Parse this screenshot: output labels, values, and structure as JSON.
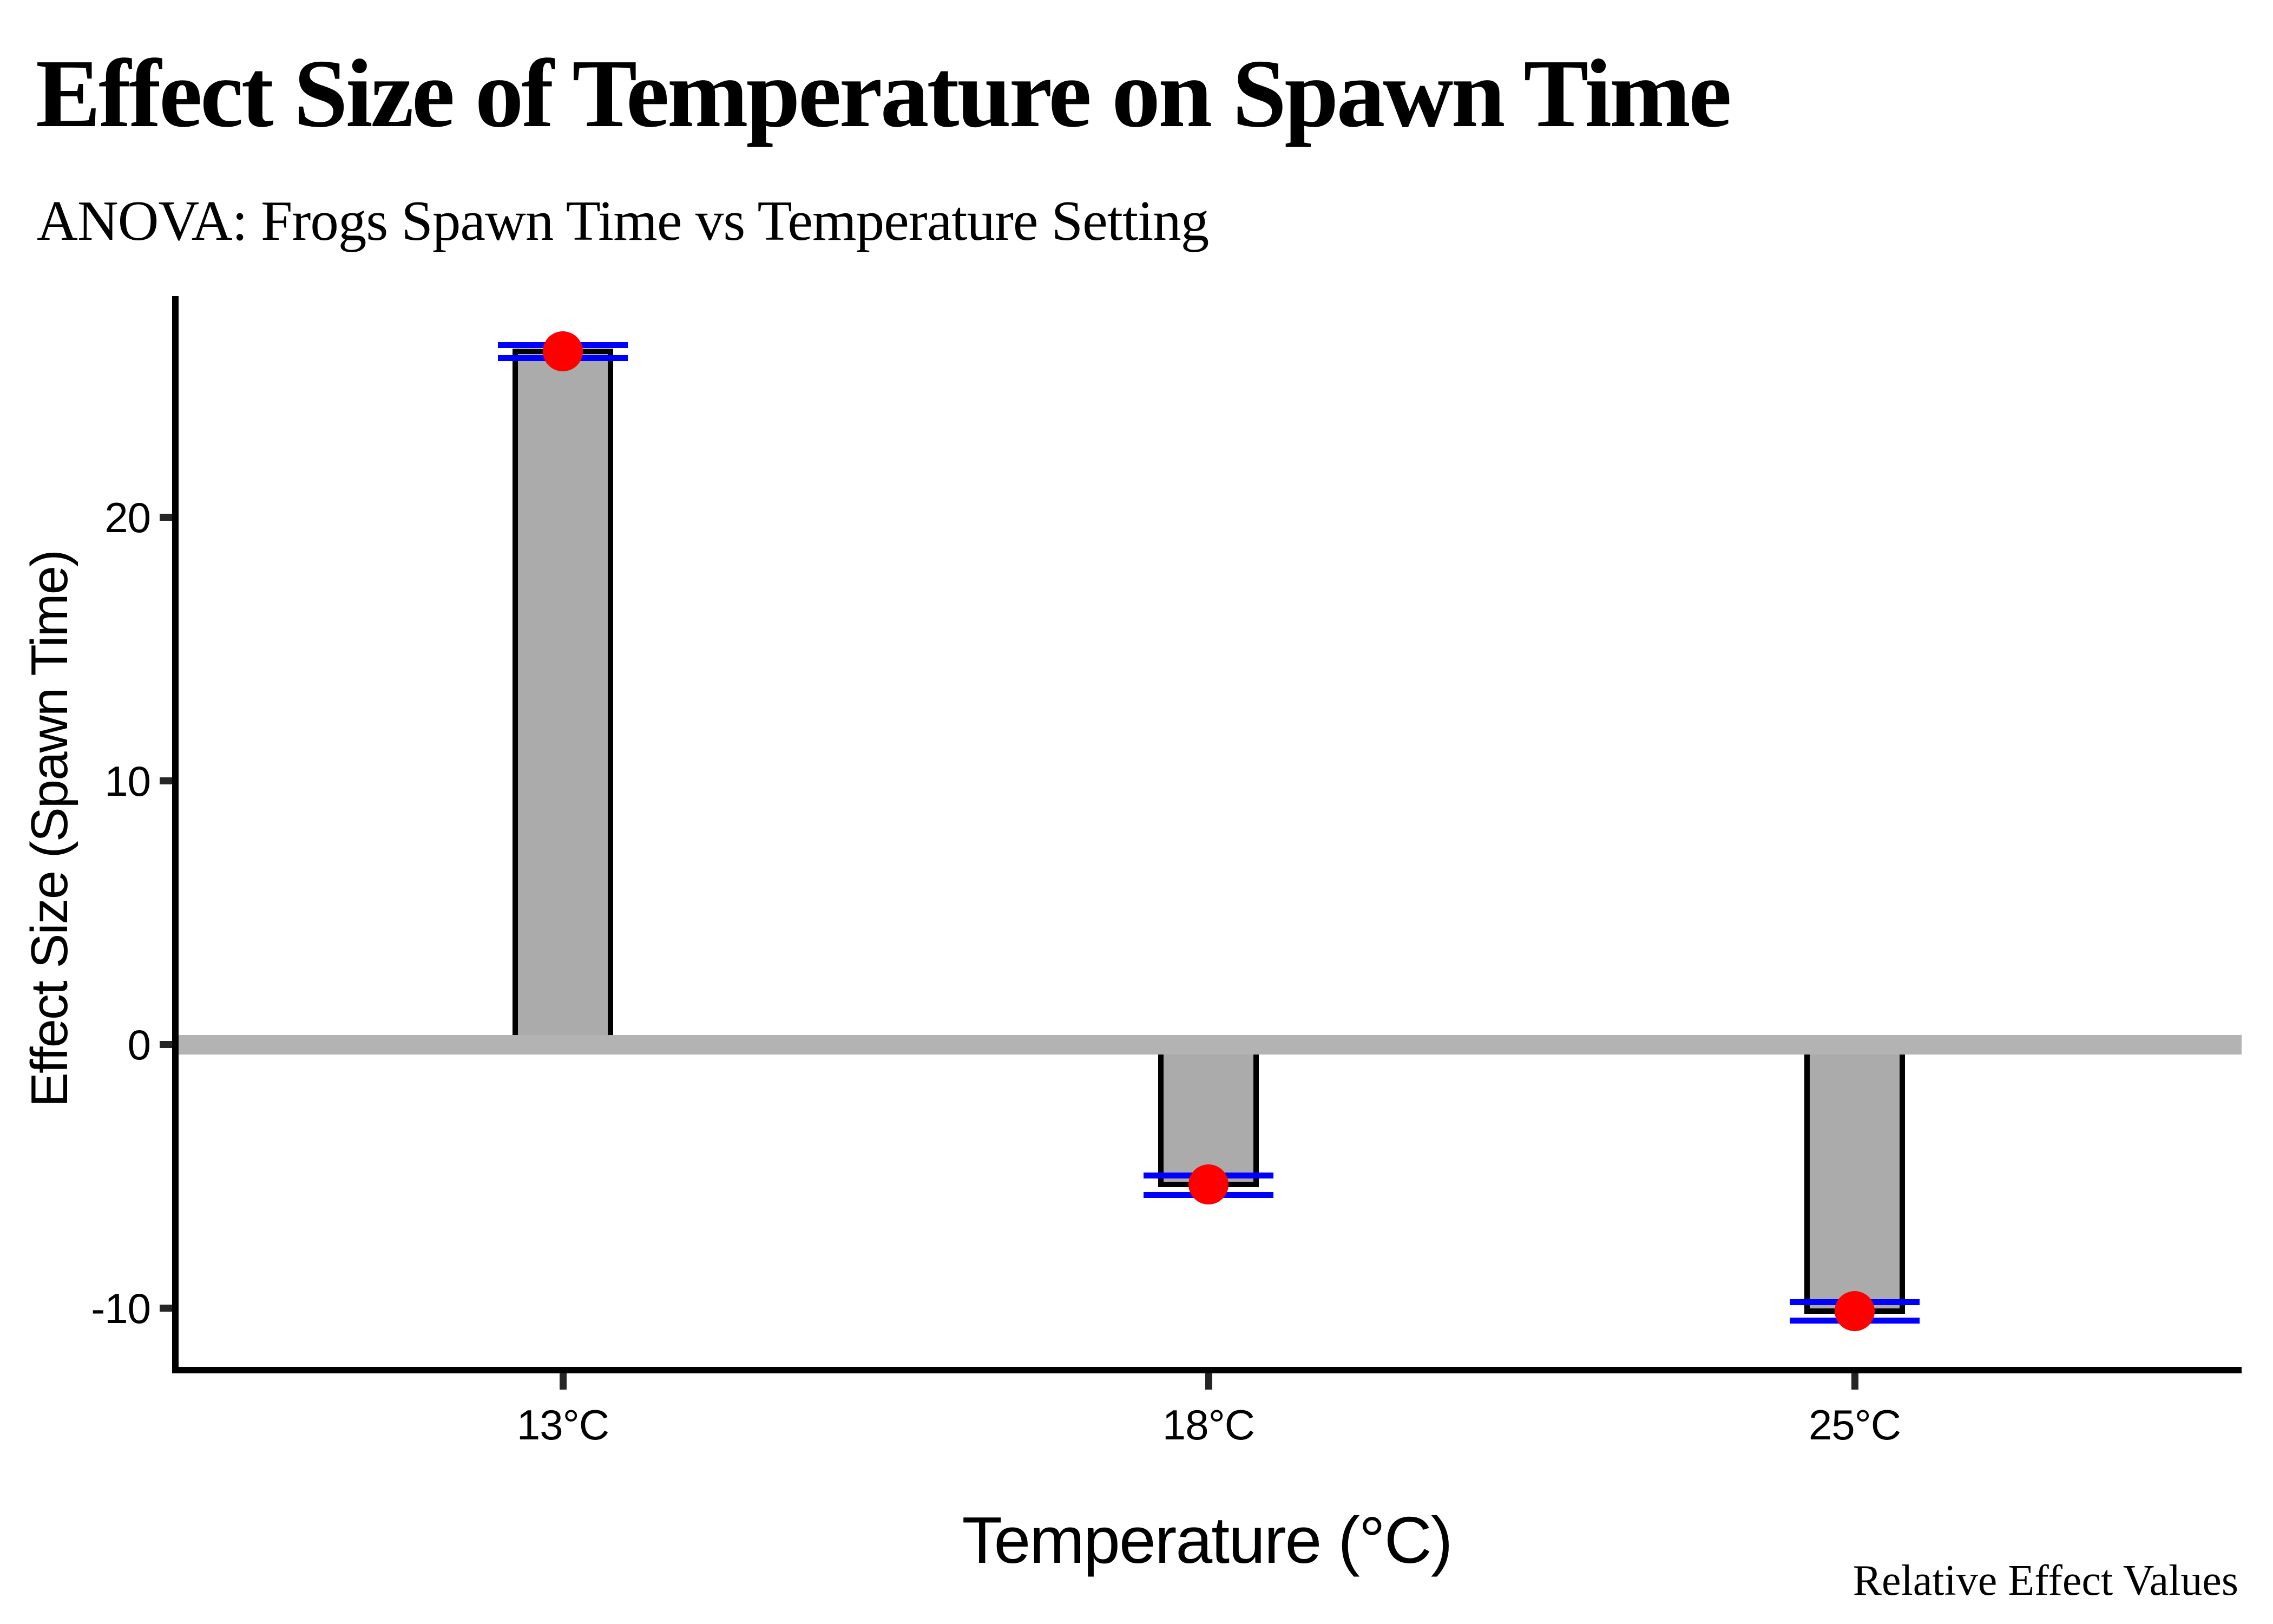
{
  "header": {
    "title": "Effect Size of Temperature on Spawn Time",
    "subtitle": "ANOVA: Frogs Spawn Time vs Temperature Setting"
  },
  "caption": "Relative Effect Values",
  "chart_data": {
    "type": "bar",
    "title": "Effect Size of Temperature on Spawn Time",
    "subtitle": "ANOVA: Frogs Spawn Time vs Temperature Setting",
    "xlabel": "Temperature (°C)",
    "ylabel": "Effect Size (Spawn Time)",
    "categories": [
      "13°C",
      "18°C",
      "25°C"
    ],
    "series": [
      {
        "name": "bar_effect_size",
        "values": [
          26.3,
          -5.3,
          -10.1
        ]
      },
      {
        "name": "mean_point",
        "values": [
          26.3,
          -5.3,
          -10.1
        ]
      },
      {
        "name": "ci_upper",
        "values": [
          26.55,
          -4.95,
          -9.77
        ]
      },
      {
        "name": "ci_lower",
        "values": [
          26.05,
          -5.69,
          -10.47
        ]
      }
    ],
    "yticks": [
      20,
      10,
      0,
      -10
    ],
    "ylim": [
      -12.4,
      28.4
    ],
    "baseline": 0,
    "grid": false,
    "legend": "none",
    "colors": {
      "bar_fill": "#ababab",
      "bar_outline": "#000000",
      "zero_line": "#b3b3b3",
      "ci_line": "#0000ff",
      "point": "#ff0000",
      "axis": "#000000",
      "tick": "#262626",
      "text": "#000000"
    }
  }
}
